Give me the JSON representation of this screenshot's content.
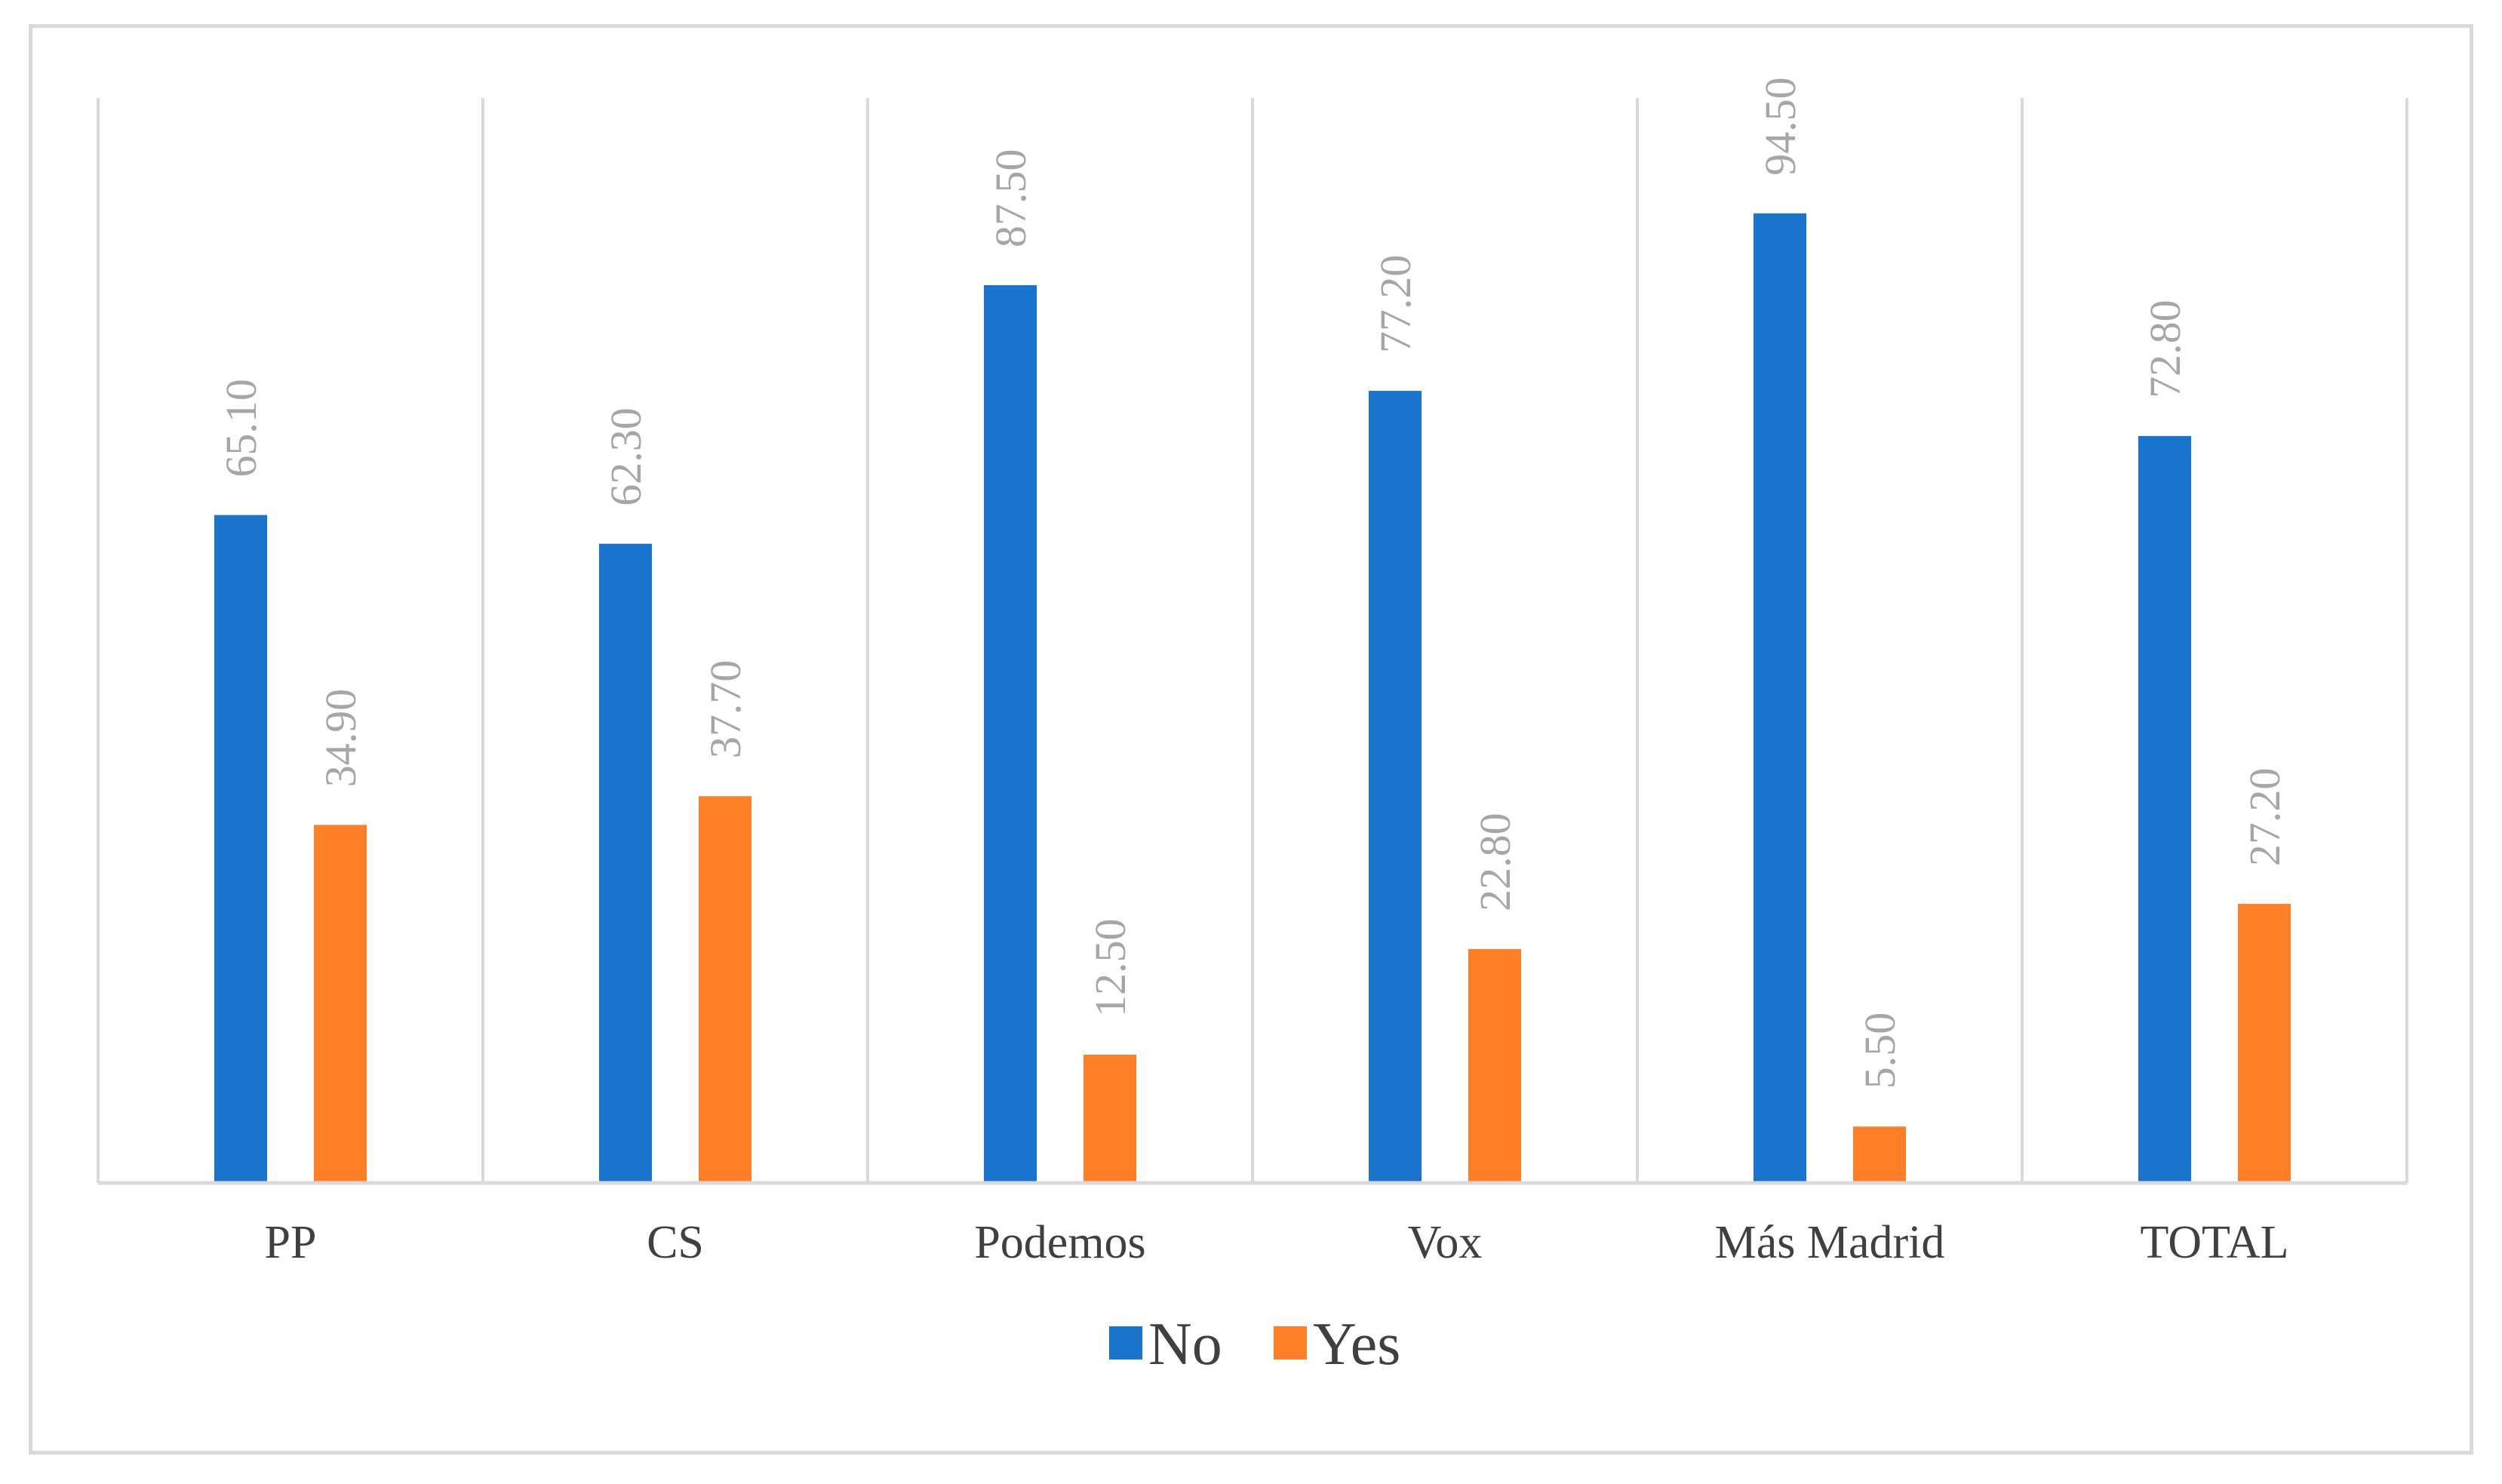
{
  "chart_data": {
    "type": "bar",
    "categories": [
      "PP",
      "CS",
      "Podemos",
      "Vox",
      "Más Madrid",
      "TOTAL"
    ],
    "series": [
      {
        "name": "No",
        "color": "#1874CD",
        "values": [
          65.1,
          62.3,
          87.5,
          77.2,
          94.5,
          72.8
        ]
      },
      {
        "name": "Yes",
        "color": "#FF7F27",
        "values": [
          34.9,
          37.7,
          12.5,
          22.8,
          5.5,
          27.2
        ]
      }
    ],
    "data_labels": [
      [
        "65.10",
        "62.30",
        "87.50",
        "77.20",
        "94.50",
        "72.80"
      ],
      [
        "34.90",
        "37.70",
        "12.50",
        "22.80",
        "5.50",
        "27.20"
      ]
    ],
    "title": "",
    "xlabel": "",
    "ylabel": "",
    "ylim": [
      0,
      100
    ],
    "legend_position": "bottom",
    "grid": "vertical category separators",
    "gridline_color": "#d9d9d9",
    "data_label_color": "#a6a6a6",
    "data_label_rotation": "vertical"
  }
}
